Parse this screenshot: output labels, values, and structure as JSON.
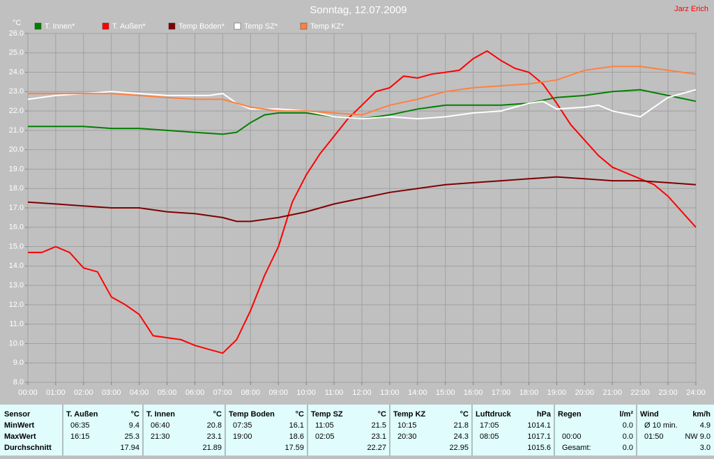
{
  "chart_data": {
    "type": "line",
    "title": "Sonntag, 12.07.2009",
    "author": "Jarz Erich",
    "y_label": "°C",
    "xlim": [
      0,
      24
    ],
    "ylim": [
      8,
      26
    ],
    "grid": true,
    "xticks": [
      {
        "value": 0,
        "label": "00:00"
      },
      {
        "value": 1,
        "label": "01:00"
      },
      {
        "value": 2,
        "label": "02:00"
      },
      {
        "value": 3,
        "label": "03:00"
      },
      {
        "value": 4,
        "label": "04:00"
      },
      {
        "value": 5,
        "label": "05:00"
      },
      {
        "value": 6,
        "label": "06:00"
      },
      {
        "value": 7,
        "label": "07:00"
      },
      {
        "value": 8,
        "label": "08:00"
      },
      {
        "value": 9,
        "label": "09:00"
      },
      {
        "value": 10,
        "label": "10:00"
      },
      {
        "value": 11,
        "label": "11:00"
      },
      {
        "value": 12,
        "label": "12:00"
      },
      {
        "value": 13,
        "label": "13:00"
      },
      {
        "value": 14,
        "label": "14:00"
      },
      {
        "value": 15,
        "label": "15:00"
      },
      {
        "value": 16,
        "label": "16:00"
      },
      {
        "value": 17,
        "label": "17:00"
      },
      {
        "value": 18,
        "label": "18:00"
      },
      {
        "value": 19,
        "label": "19:00"
      },
      {
        "value": 20,
        "label": "20:00"
      },
      {
        "value": 21,
        "label": "21:00"
      },
      {
        "value": 22,
        "label": "22:00"
      },
      {
        "value": 23,
        "label": "23:00"
      },
      {
        "value": 24,
        "label": "24:00"
      }
    ],
    "yticks": [
      {
        "value": 8,
        "label": "8.0"
      },
      {
        "value": 9,
        "label": "9.0"
      },
      {
        "value": 10,
        "label": "10.0"
      },
      {
        "value": 11,
        "label": "11.0"
      },
      {
        "value": 12,
        "label": "12.0"
      },
      {
        "value": 13,
        "label": "13.0"
      },
      {
        "value": 14,
        "label": "14.0"
      },
      {
        "value": 15,
        "label": "15.0"
      },
      {
        "value": 16,
        "label": "16.0"
      },
      {
        "value": 17,
        "label": "17.0"
      },
      {
        "value": 18,
        "label": "18.0"
      },
      {
        "value": 19,
        "label": "19.0"
      },
      {
        "value": 20,
        "label": "20.0"
      },
      {
        "value": 21,
        "label": "21.0"
      },
      {
        "value": 22,
        "label": "22.0"
      },
      {
        "value": 23,
        "label": "23.0"
      },
      {
        "value": 24,
        "label": "24.0"
      },
      {
        "value": 25,
        "label": "25.0"
      },
      {
        "value": 26,
        "label": "26.0"
      }
    ],
    "series": [
      {
        "name": "T. Innen*",
        "color": "#008000",
        "x": [
          0,
          1,
          2,
          3,
          4,
          5,
          6,
          7,
          7.5,
          8,
          8.5,
          9,
          10,
          11,
          12,
          13,
          14,
          15,
          16,
          17,
          18,
          19,
          20,
          21,
          22,
          23,
          24
        ],
        "values": [
          21.2,
          21.2,
          21.2,
          21.1,
          21.1,
          21.0,
          20.9,
          20.8,
          20.9,
          21.4,
          21.8,
          21.9,
          21.9,
          21.7,
          21.6,
          21.8,
          22.1,
          22.3,
          22.3,
          22.3,
          22.4,
          22.7,
          22.8,
          23.0,
          23.1,
          22.8,
          22.5
        ]
      },
      {
        "name": "T. Außen*",
        "color": "#ff0000",
        "x": [
          0,
          0.5,
          1,
          1.5,
          2,
          2.5,
          3,
          3.5,
          4,
          4.5,
          5,
          5.5,
          6,
          6.5,
          7,
          7.5,
          8,
          8.5,
          9,
          9.5,
          10,
          10.5,
          11,
          11.5,
          12,
          12.5,
          13,
          13.5,
          14,
          14.5,
          15,
          15.5,
          16,
          16.5,
          17,
          17.5,
          18,
          18.5,
          19,
          19.5,
          20,
          20.5,
          21,
          21.5,
          22,
          22.5,
          23,
          23.5,
          24
        ],
        "values": [
          14.7,
          14.7,
          15.0,
          14.7,
          13.9,
          13.7,
          12.4,
          12.0,
          11.5,
          10.4,
          10.3,
          10.2,
          9.9,
          9.7,
          9.5,
          10.2,
          11.7,
          13.5,
          15.0,
          17.3,
          18.7,
          19.8,
          20.7,
          21.6,
          22.3,
          23.0,
          23.2,
          23.8,
          23.7,
          23.9,
          24.0,
          24.1,
          24.7,
          25.1,
          24.6,
          24.2,
          24.0,
          23.4,
          22.4,
          21.3,
          20.5,
          19.7,
          19.1,
          18.8,
          18.5,
          18.2,
          17.6,
          16.8,
          16.0
        ]
      },
      {
        "name": "Temp Boden*",
        "color": "#800000",
        "x": [
          0,
          1,
          2,
          3,
          4,
          5,
          6,
          7,
          7.5,
          8,
          9,
          10,
          11,
          12,
          13,
          14,
          15,
          16,
          17,
          18,
          19,
          20,
          21,
          22,
          23,
          24
        ],
        "values": [
          17.3,
          17.2,
          17.1,
          17.0,
          17.0,
          16.8,
          16.7,
          16.5,
          16.3,
          16.3,
          16.5,
          16.8,
          17.2,
          17.5,
          17.8,
          18.0,
          18.2,
          18.3,
          18.4,
          18.5,
          18.6,
          18.5,
          18.4,
          18.4,
          18.3,
          18.2
        ]
      },
      {
        "name": "Temp SZ*",
        "color": "#ffffff",
        "x": [
          0,
          1,
          2,
          3,
          4,
          5,
          6,
          6.5,
          7,
          7.5,
          8,
          9,
          10,
          11,
          12,
          13,
          14,
          15,
          16,
          17,
          18,
          18.5,
          19,
          20,
          20.5,
          21,
          22,
          23,
          24
        ],
        "values": [
          22.6,
          22.8,
          22.9,
          23.0,
          22.9,
          22.8,
          22.8,
          22.8,
          22.9,
          22.4,
          22.1,
          22.1,
          22.0,
          21.7,
          21.6,
          21.7,
          21.6,
          21.7,
          21.9,
          22.0,
          22.4,
          22.5,
          22.1,
          22.2,
          22.3,
          22.0,
          21.7,
          22.7,
          23.1
        ]
      },
      {
        "name": "Temp KZ*",
        "color": "#ff8040",
        "x": [
          0,
          1,
          2,
          3,
          4,
          5,
          6,
          7,
          8,
          9,
          10,
          11,
          12,
          13,
          14,
          15,
          16,
          17,
          18,
          19,
          20,
          21,
          22,
          23,
          24
        ],
        "values": [
          22.9,
          22.9,
          22.9,
          22.9,
          22.8,
          22.7,
          22.6,
          22.6,
          22.2,
          22.0,
          22.0,
          21.9,
          21.8,
          22.3,
          22.6,
          23.0,
          23.2,
          23.3,
          23.4,
          23.6,
          24.1,
          24.3,
          24.3,
          24.1,
          23.9
        ]
      }
    ]
  },
  "table": {
    "corner": "Sensor",
    "row_labels": [
      "MinWert",
      "MaxWert",
      "Durchschnitt"
    ],
    "columns": [
      {
        "name": "T. Außen",
        "unit": "°C",
        "cells": [
          [
            "06:35",
            "9.4"
          ],
          [
            "16:15",
            "25.3"
          ],
          [
            null,
            "17.94"
          ]
        ]
      },
      {
        "name": "T. Innen",
        "unit": "°C",
        "cells": [
          [
            "06:40",
            "20.8"
          ],
          [
            "21:30",
            "23.1"
          ],
          [
            null,
            "21.89"
          ]
        ]
      },
      {
        "name": "Temp Boden",
        "unit": "°C",
        "cells": [
          [
            "07:35",
            "16.1"
          ],
          [
            "19:00",
            "18.6"
          ],
          [
            null,
            "17.59"
          ]
        ]
      },
      {
        "name": "Temp SZ",
        "unit": "°C",
        "cells": [
          [
            "11:05",
            "21.5"
          ],
          [
            "02:05",
            "23.1"
          ],
          [
            null,
            "22.27"
          ]
        ]
      },
      {
        "name": "Temp KZ",
        "unit": "°C",
        "cells": [
          [
            "10:15",
            "21.8"
          ],
          [
            "20:30",
            "24.3"
          ],
          [
            null,
            "22.95"
          ]
        ]
      },
      {
        "name": "Luftdruck",
        "unit": "hPa",
        "cells": [
          [
            "17:05",
            "1014.1"
          ],
          [
            "08:05",
            "1017.1"
          ],
          [
            null,
            "1015.6"
          ]
        ]
      },
      {
        "name": "Regen",
        "unit": "l/m²",
        "cells": [
          [
            null,
            "0.0"
          ],
          [
            "00:00",
            "0.0"
          ],
          [
            "Gesamt:",
            "0.0"
          ]
        ]
      },
      {
        "name": "Wind",
        "unit": "km/h",
        "cells": [
          [
            "Ø 10 min.",
            "4.9"
          ],
          [
            "01:50",
            "NW 9.0"
          ],
          [
            null,
            "3.0"
          ]
        ]
      }
    ]
  }
}
